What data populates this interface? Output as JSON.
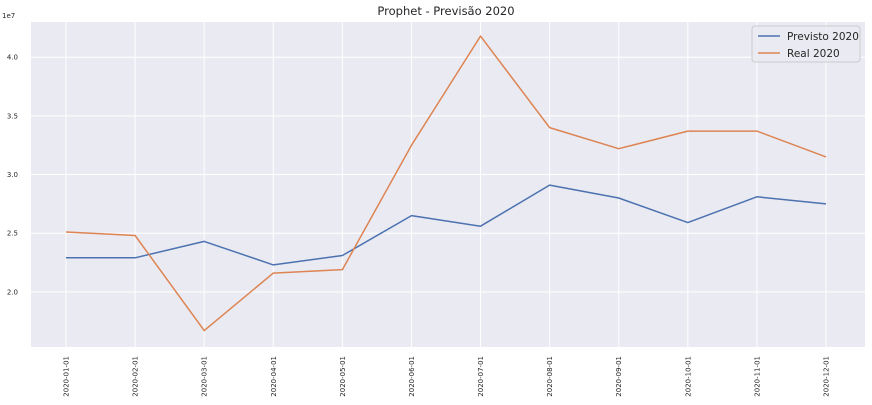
{
  "chart_data": {
    "type": "line",
    "title": "Prophet - Previsão 2020",
    "xlabel": "",
    "ylabel": "",
    "y_offset_label": "1e7",
    "categories": [
      "2020-01-01",
      "2020-02-01",
      "2020-03-01",
      "2020-04-01",
      "2020-05-01",
      "2020-06-01",
      "2020-07-01",
      "2020-08-01",
      "2020-09-01",
      "2020-10-01",
      "2020-11-01",
      "2020-12-01"
    ],
    "y_ticks": [
      "2.0",
      "2.5",
      "3.0",
      "3.5",
      "4.0"
    ],
    "y_tick_values": [
      2.0,
      2.5,
      3.0,
      3.5,
      4.0
    ],
    "ylim": [
      1.53,
      4.3
    ],
    "grid": true,
    "legend_position": "top-right",
    "series": [
      {
        "name": "Previsto 2020",
        "color": "#4c72b0",
        "values": [
          2.29,
          2.29,
          2.43,
          2.23,
          2.31,
          2.65,
          2.56,
          2.91,
          2.8,
          2.59,
          2.81,
          2.75
        ]
      },
      {
        "name": "Real 2020",
        "color": "#dd8452",
        "values": [
          2.51,
          2.48,
          1.67,
          2.16,
          2.19,
          3.25,
          4.18,
          3.4,
          3.22,
          3.37,
          3.37,
          3.15
        ]
      }
    ]
  }
}
